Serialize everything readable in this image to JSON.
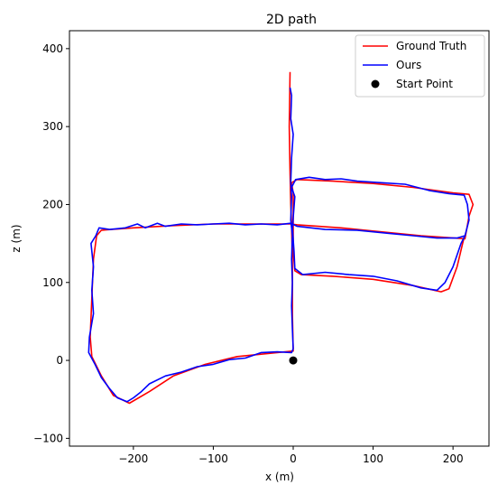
{
  "chart_data": {
    "type": "line",
    "title": "2D path",
    "xlabel": "x (m)",
    "ylabel": "z (m)",
    "xlim": [
      -280,
      245
    ],
    "ylim": [
      -110,
      423
    ],
    "xticks": [
      -200,
      -100,
      0,
      100,
      200
    ],
    "yticks": [
      -100,
      0,
      100,
      200,
      300,
      400
    ],
    "grid": false,
    "legend_position": "top-right",
    "series": [
      {
        "name": "Ground Truth",
        "color": "#ff0000",
        "points": [
          [
            -4,
            370
          ],
          [
            -5,
            300
          ],
          [
            -4,
            240
          ],
          [
            -3,
            200
          ],
          [
            -2,
            175
          ],
          [
            -1,
            120
          ],
          [
            -1,
            60
          ],
          [
            0,
            12
          ],
          [
            -20,
            10
          ],
          [
            -70,
            5
          ],
          [
            -110,
            -5
          ],
          [
            -150,
            -20
          ],
          [
            -180,
            -40
          ],
          [
            -205,
            -55
          ],
          [
            -225,
            -45
          ],
          [
            -240,
            -20
          ],
          [
            -252,
            5
          ],
          [
            -254,
            30
          ],
          [
            -252,
            80
          ],
          [
            -250,
            130
          ],
          [
            -246,
            160
          ],
          [
            -240,
            167
          ],
          [
            -200,
            170
          ],
          [
            -150,
            173
          ],
          [
            -100,
            175
          ],
          [
            -50,
            175
          ],
          [
            -3,
            175
          ],
          [
            5,
            174
          ],
          [
            60,
            170
          ],
          [
            110,
            165
          ],
          [
            160,
            160
          ],
          [
            215,
            156
          ],
          [
            220,
            185
          ],
          [
            225,
            200
          ],
          [
            220,
            213
          ],
          [
            200,
            215
          ],
          [
            150,
            222
          ],
          [
            100,
            227
          ],
          [
            50,
            230
          ],
          [
            5,
            232
          ],
          [
            -2,
            228
          ],
          [
            0,
            215
          ],
          [
            0,
            170
          ],
          [
            0,
            140
          ],
          [
            2,
            115
          ],
          [
            10,
            110
          ],
          [
            50,
            108
          ],
          [
            100,
            104
          ],
          [
            150,
            96
          ],
          [
            185,
            88
          ],
          [
            195,
            92
          ],
          [
            205,
            120
          ],
          [
            212,
            150
          ],
          [
            214,
            158
          ]
        ]
      },
      {
        "name": "Ours",
        "color": "#0000ff",
        "points": [
          [
            -4,
            350
          ],
          [
            -2,
            340
          ],
          [
            -3,
            310
          ],
          [
            0,
            290
          ],
          [
            -2,
            260
          ],
          [
            -3,
            230
          ],
          [
            -2,
            210
          ],
          [
            -3,
            180
          ],
          [
            -1,
            160
          ],
          [
            -2,
            130
          ],
          [
            -1,
            100
          ],
          [
            -2,
            70
          ],
          [
            -1,
            40
          ],
          [
            0,
            15
          ],
          [
            -2,
            10
          ],
          [
            -20,
            11
          ],
          [
            -40,
            10
          ],
          [
            -60,
            3
          ],
          [
            -80,
            1
          ],
          [
            -100,
            -5
          ],
          [
            -120,
            -8
          ],
          [
            -140,
            -15
          ],
          [
            -160,
            -20
          ],
          [
            -180,
            -30
          ],
          [
            -190,
            -40
          ],
          [
            -200,
            -48
          ],
          [
            -208,
            -53
          ],
          [
            -220,
            -48
          ],
          [
            -230,
            -36
          ],
          [
            -240,
            -22
          ],
          [
            -248,
            -5
          ],
          [
            -256,
            10
          ],
          [
            -255,
            30
          ],
          [
            -250,
            60
          ],
          [
            -252,
            90
          ],
          [
            -250,
            120
          ],
          [
            -253,
            150
          ],
          [
            -247,
            160
          ],
          [
            -243,
            170
          ],
          [
            -230,
            168
          ],
          [
            -210,
            170
          ],
          [
            -195,
            175
          ],
          [
            -185,
            170
          ],
          [
            -170,
            176
          ],
          [
            -160,
            172
          ],
          [
            -140,
            175
          ],
          [
            -120,
            174
          ],
          [
            -100,
            175
          ],
          [
            -80,
            176
          ],
          [
            -60,
            174
          ],
          [
            -40,
            175
          ],
          [
            -20,
            174
          ],
          [
            -3,
            176
          ],
          [
            5,
            172
          ],
          [
            40,
            168
          ],
          [
            80,
            167
          ],
          [
            120,
            163
          ],
          [
            150,
            160
          ],
          [
            180,
            157
          ],
          [
            205,
            157
          ],
          [
            215,
            160
          ],
          [
            220,
            180
          ],
          [
            218,
            200
          ],
          [
            214,
            212
          ],
          [
            195,
            214
          ],
          [
            170,
            218
          ],
          [
            140,
            226
          ],
          [
            110,
            228
          ],
          [
            80,
            230
          ],
          [
            60,
            233
          ],
          [
            40,
            232
          ],
          [
            20,
            235
          ],
          [
            3,
            232
          ],
          [
            -2,
            222
          ],
          [
            2,
            210
          ],
          [
            -1,
            170
          ],
          [
            1,
            140
          ],
          [
            2,
            118
          ],
          [
            12,
            110
          ],
          [
            40,
            113
          ],
          [
            70,
            110
          ],
          [
            100,
            108
          ],
          [
            130,
            102
          ],
          [
            160,
            93
          ],
          [
            180,
            90
          ],
          [
            190,
            100
          ],
          [
            200,
            120
          ],
          [
            210,
            150
          ],
          [
            215,
            160
          ]
        ]
      },
      {
        "name": "Start Point",
        "color": "#000000",
        "type": "scatter",
        "points": [
          [
            0,
            0
          ]
        ]
      }
    ]
  }
}
